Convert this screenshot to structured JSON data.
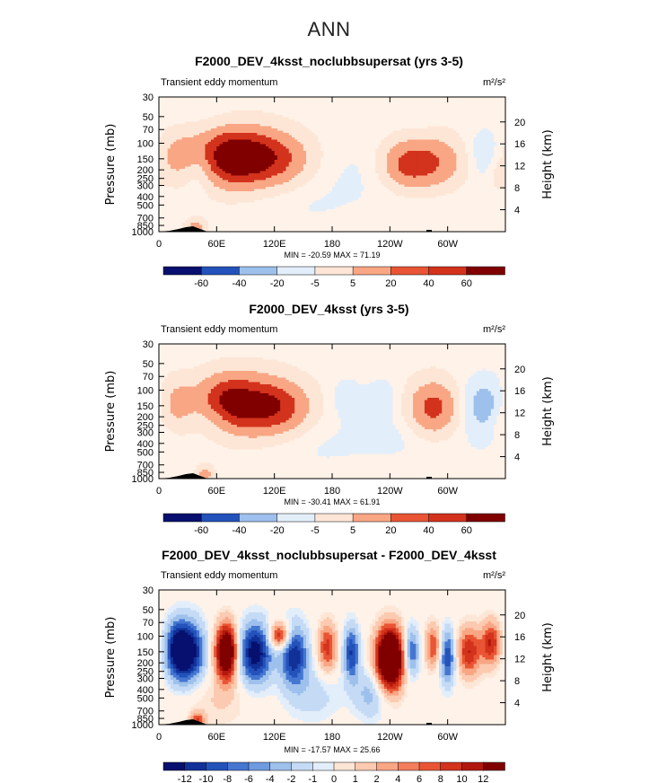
{
  "figure_title": "ANN",
  "colors": {
    "pos_scale": [
      "#fde6d6",
      "#fccab0",
      "#f9a684",
      "#f47d5c",
      "#e95534",
      "#d3321c",
      "#b3180e",
      "#800000"
    ],
    "neg_scale": [
      "#e3eefb",
      "#c5dbf5",
      "#9ec0ec",
      "#6f9ce0",
      "#4576d1",
      "#2452bb",
      "#113199",
      "#07106e"
    ],
    "neutral": "#fff2e8",
    "topo": "#000000"
  },
  "chart_data": [
    {
      "type": "heatmap",
      "title": "F2000_DEV_4ksst_noclubbsupersat (yrs 3-5)",
      "subtitle_left": "Transient eddy momentum",
      "units": "m²/s²",
      "ylabel": "Pressure (mb)",
      "ylabel_right": "Height (km)",
      "x_tick_labels": [
        "0",
        "60E",
        "120E",
        "180",
        "120W",
        "60W"
      ],
      "y_tick_labels": [
        "30",
        "50",
        "70",
        "100",
        "150",
        "200",
        "250",
        "300",
        "400",
        "500",
        "700",
        "850",
        "1000"
      ],
      "y2_tick_labels": [
        "20",
        "16",
        "12",
        "8",
        "4"
      ],
      "stats": "MIN = -20.59   MAX = 71.19",
      "colorbar_levels": [
        "-60",
        "-40",
        "-20",
        "-5",
        "5",
        "20",
        "40",
        "60"
      ],
      "blobs": [
        {
          "lon": 75,
          "p": 140,
          "amp": 70,
          "rl": 28,
          "rp": 0.55
        },
        {
          "lon": 108,
          "p": 150,
          "amp": 30,
          "rl": 30,
          "rp": 0.5
        },
        {
          "lon": 130,
          "p": 155,
          "amp": 18,
          "rl": 22,
          "rp": 0.5
        },
        {
          "lon": 278,
          "p": 165,
          "amp": 42,
          "rl": 30,
          "rp": 0.5
        },
        {
          "lon": 255,
          "p": 180,
          "amp": 22,
          "rl": 18,
          "rp": 0.4
        },
        {
          "lon": 18,
          "p": 140,
          "amp": 22,
          "rl": 16,
          "rp": 0.45
        },
        {
          "lon": 42,
          "p": 200,
          "amp": -20,
          "rl": 12,
          "rp": 0.4
        },
        {
          "lon": 222,
          "p": 180,
          "amp": -8,
          "rl": 30,
          "rp": 0.6
        },
        {
          "lon": 338,
          "p": 140,
          "amp": -18,
          "rl": 16,
          "rp": 0.5
        },
        {
          "lon": 352,
          "p": 230,
          "amp": 12,
          "rl": 8,
          "rp": 0.35
        },
        {
          "lon": 38,
          "p": 880,
          "amp": 30,
          "rl": 7,
          "rp": 0.15
        },
        {
          "lon": 150,
          "p": 450,
          "amp": -6,
          "rl": 45,
          "rp": 0.6
        },
        {
          "lon": 300,
          "p": 550,
          "amp": -4,
          "rl": 40,
          "rp": 0.6
        },
        {
          "lon": 60,
          "p": 60,
          "amp": -6,
          "rl": 25,
          "rp": 0.35
        },
        {
          "lon": 270,
          "p": 50,
          "amp": -5,
          "rl": 15,
          "rp": 0.35
        }
      ],
      "contour_levels": [
        -60,
        -40,
        -20,
        -5,
        5,
        20,
        40,
        60
      ],
      "y_range": [
        30,
        1000
      ],
      "x_range": [
        0,
        360
      ]
    },
    {
      "type": "heatmap",
      "title": "F2000_DEV_4ksst (yrs 3-5)",
      "subtitle_left": "Transient eddy momentum",
      "units": "m²/s²",
      "ylabel": "Pressure (mb)",
      "ylabel_right": "Height (km)",
      "x_tick_labels": [
        "0",
        "60E",
        "120E",
        "180",
        "120W",
        "60W"
      ],
      "y_tick_labels": [
        "30",
        "50",
        "70",
        "100",
        "150",
        "200",
        "250",
        "300",
        "400",
        "500",
        "700",
        "850",
        "1000"
      ],
      "y2_tick_labels": [
        "20",
        "16",
        "12",
        "8",
        "4"
      ],
      "stats": "MIN = -30.41   MAX = 61.91",
      "colorbar_levels": [
        "-60",
        "-40",
        "-20",
        "-5",
        "5",
        "20",
        "40",
        "60"
      ],
      "blobs": [
        {
          "lon": 95,
          "p": 150,
          "amp": 60,
          "rl": 32,
          "rp": 0.55
        },
        {
          "lon": 68,
          "p": 125,
          "amp": 30,
          "rl": 20,
          "rp": 0.45
        },
        {
          "lon": 130,
          "p": 160,
          "amp": 25,
          "rl": 22,
          "rp": 0.45
        },
        {
          "lon": 18,
          "p": 140,
          "amp": 25,
          "rl": 14,
          "rp": 0.45
        },
        {
          "lon": 55,
          "p": 200,
          "amp": -12,
          "rl": 16,
          "rp": 0.35
        },
        {
          "lon": 195,
          "p": 120,
          "amp": -12,
          "rl": 12,
          "rp": 0.35
        },
        {
          "lon": 232,
          "p": 120,
          "amp": -12,
          "rl": 12,
          "rp": 0.35
        },
        {
          "lon": 285,
          "p": 160,
          "amp": 48,
          "rl": 18,
          "rp": 0.5
        },
        {
          "lon": 338,
          "p": 150,
          "amp": -30,
          "rl": 16,
          "rp": 0.5
        },
        {
          "lon": 352,
          "p": 220,
          "amp": 10,
          "rl": 6,
          "rp": 0.3
        },
        {
          "lon": 48,
          "p": 880,
          "amp": 28,
          "rl": 6,
          "rp": 0.15
        },
        {
          "lon": 160,
          "p": 420,
          "amp": -6,
          "rl": 50,
          "rp": 0.6
        },
        {
          "lon": 300,
          "p": 500,
          "amp": -4,
          "rl": 40,
          "rp": 0.6
        },
        {
          "lon": 240,
          "p": 300,
          "amp": -6,
          "rl": 30,
          "rp": 0.4
        }
      ],
      "contour_levels": [
        -60,
        -40,
        -20,
        -5,
        5,
        20,
        40,
        60
      ],
      "y_range": [
        30,
        1000
      ],
      "x_range": [
        0,
        360
      ]
    },
    {
      "type": "heatmap",
      "title": "F2000_DEV_4ksst_noclubbsupersat - F2000_DEV_4ksst",
      "subtitle_left": "Transient eddy momentum",
      "units": "m²/s²",
      "ylabel": "Pressure (mb)",
      "ylabel_right": "Height (km)",
      "x_tick_labels": [
        "0",
        "60E",
        "120E",
        "180",
        "120W",
        "60W"
      ],
      "y_tick_labels": [
        "30",
        "50",
        "70",
        "100",
        "150",
        "200",
        "250",
        "300",
        "400",
        "500",
        "700",
        "850",
        "1000"
      ],
      "y2_tick_labels": [
        "20",
        "16",
        "12",
        "8",
        "4"
      ],
      "stats": "MIN = -17.57   MAX = 25.66",
      "colorbar_levels": [
        "-12",
        "-10",
        "-8",
        "-6",
        "-4",
        "-2",
        "-1",
        "0",
        "1",
        "2",
        "4",
        "6",
        "8",
        "10",
        "12"
      ],
      "blobs": [
        {
          "lon": 30,
          "p": 150,
          "amp": -15,
          "rl": 12,
          "rp": 0.55
        },
        {
          "lon": 18,
          "p": 140,
          "amp": -8,
          "rl": 8,
          "rp": 0.5
        },
        {
          "lon": 70,
          "p": 150,
          "amp": 20,
          "rl": 8,
          "rp": 0.5
        },
        {
          "lon": 100,
          "p": 155,
          "amp": -14,
          "rl": 12,
          "rp": 0.55
        },
        {
          "lon": 126,
          "p": 100,
          "amp": 12,
          "rl": 8,
          "rp": 0.25
        },
        {
          "lon": 140,
          "p": 160,
          "amp": -12,
          "rl": 10,
          "rp": 0.55
        },
        {
          "lon": 175,
          "p": 135,
          "amp": 9,
          "rl": 7,
          "rp": 0.45
        },
        {
          "lon": 200,
          "p": 155,
          "amp": -10,
          "rl": 6,
          "rp": 0.5
        },
        {
          "lon": 240,
          "p": 180,
          "amp": 25,
          "rl": 10,
          "rp": 0.55
        },
        {
          "lon": 262,
          "p": 150,
          "amp": -9,
          "rl": 6,
          "rp": 0.45
        },
        {
          "lon": 285,
          "p": 130,
          "amp": 8,
          "rl": 6,
          "rp": 0.4
        },
        {
          "lon": 300,
          "p": 170,
          "amp": -10,
          "rl": 6,
          "rp": 0.5
        },
        {
          "lon": 322,
          "p": 150,
          "amp": 10,
          "rl": 9,
          "rp": 0.45
        },
        {
          "lon": 345,
          "p": 120,
          "amp": 10,
          "rl": 7,
          "rp": 0.4
        },
        {
          "lon": 220,
          "p": 450,
          "amp": -5,
          "rl": 12,
          "rp": 0.45
        },
        {
          "lon": 160,
          "p": 450,
          "amp": -3,
          "rl": 20,
          "rp": 0.5
        },
        {
          "lon": 40,
          "p": 900,
          "amp": 8,
          "rl": 5,
          "rp": 0.15
        },
        {
          "lon": 60,
          "p": 550,
          "amp": 2,
          "rl": 25,
          "rp": 0.5
        }
      ],
      "contour_levels": [
        -12,
        -10,
        -8,
        -6,
        -4,
        -2,
        -1,
        1,
        2,
        4,
        6,
        8,
        10,
        12
      ],
      "y_range": [
        30,
        1000
      ],
      "x_range": [
        0,
        360
      ]
    }
  ]
}
